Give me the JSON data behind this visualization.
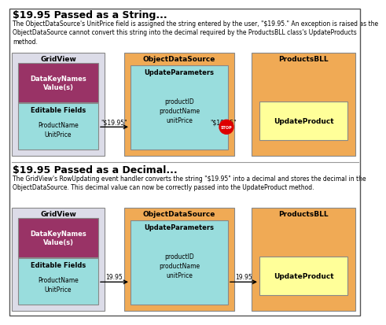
{
  "bg_color": "#ffffff",
  "border_color": "#555555",
  "title1": "$19.95 Passed as a String...",
  "desc1": "The ObjectDataSource's UnitPrice field is assigned the string entered by the user, \"$19.95.\" An exception is raised as the\nObjectDataSource cannot convert this string into the decimal required by the ProductsBLL class's UpdateProducts\nmethod.",
  "title2": "$19.95 Passed as a Decimal...",
  "desc2": "The GridView's RowUpdating event handler converts the string \"$19.95\" into a decimal and stores the decimal in the\nObjectDataSource. This decimal value can now be correctly passed into the UpdateProduct method.",
  "gridview_bg": "#dcdce8",
  "gridview_border": "#888888",
  "datakey_bg": "#993366",
  "datakey_text": "#ffffff",
  "editable_bg": "#99dddd",
  "editable_border": "#888888",
  "ods_bg": "#f0aa55",
  "ods_border": "#888888",
  "updateparam_bg": "#99dddd",
  "updateparam_border": "#888888",
  "productsbll_bg": "#f0aa55",
  "productsbll_border": "#888888",
  "updateproduct_bg": "#ffff99",
  "updateproduct_border": "#888888",
  "arrow_color": "#000000",
  "stop_color": "#dd0000",
  "label_string": "\"$19.95\"",
  "label_decimal": "19.95",
  "divider_color": "#999999"
}
